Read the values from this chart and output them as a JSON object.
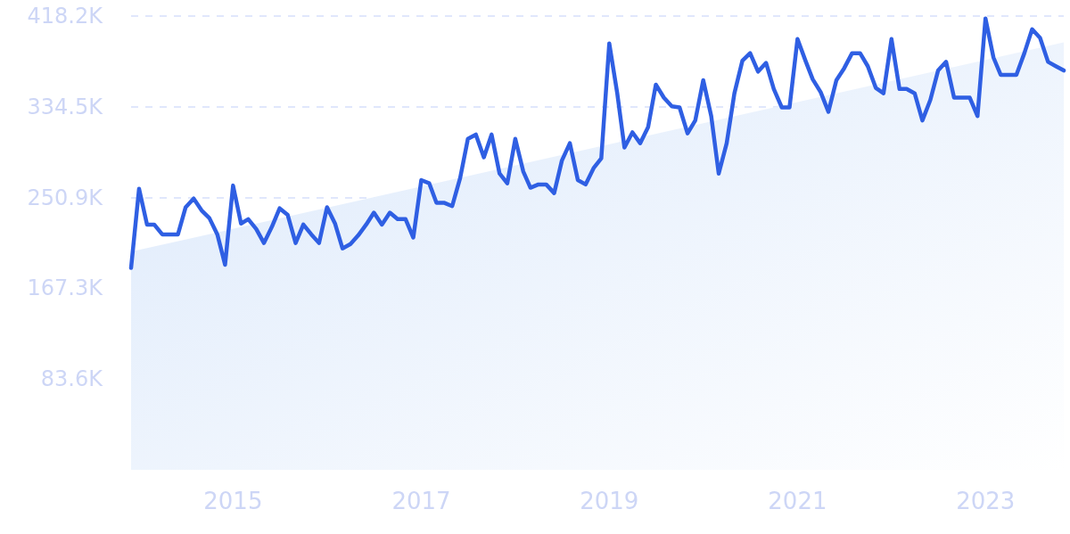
{
  "chart_data": {
    "type": "line",
    "xlim": [
      "2013-12",
      "2023-11"
    ],
    "xticks": [
      "2015",
      "2017",
      "2019",
      "2021",
      "2023"
    ],
    "ylim": [
      0,
      418200
    ],
    "yticks": [
      {
        "value": 83640,
        "label": "83.6K"
      },
      {
        "value": 167280,
        "label": "167.3K"
      },
      {
        "value": 250920,
        "label": "250.9K"
      },
      {
        "value": 334500,
        "label": "334.5K"
      },
      {
        "value": 418200,
        "label": "418.2K"
      }
    ],
    "grid": "y",
    "marker": "none",
    "line_style": "solid",
    "series": [
      {
        "type": "area",
        "color": "#dce9fb",
        "x": [
          "2013-12",
          "2023-11"
        ],
        "values": [
          201000,
          394000
        ]
      },
      {
        "color": "#2f5fe3",
        "x": [
          "2013-12",
          "2014-01",
          "2014-02",
          "2014-03",
          "2014-04",
          "2014-05",
          "2014-06",
          "2014-07",
          "2014-08",
          "2014-09",
          "2014-10",
          "2014-11",
          "2014-12",
          "2015-01",
          "2015-02",
          "2015-03",
          "2015-04",
          "2015-05",
          "2015-06",
          "2015-07",
          "2015-08",
          "2015-09",
          "2015-10",
          "2015-11",
          "2015-12",
          "2016-01",
          "2016-02",
          "2016-03",
          "2016-04",
          "2016-05",
          "2016-06",
          "2016-07",
          "2016-08",
          "2016-09",
          "2016-10",
          "2016-11",
          "2016-12",
          "2017-01",
          "2017-02",
          "2017-03",
          "2017-04",
          "2017-05",
          "2017-06",
          "2017-07",
          "2017-08",
          "2017-09",
          "2017-10",
          "2017-11",
          "2017-12",
          "2018-01",
          "2018-02",
          "2018-03",
          "2018-04",
          "2018-05",
          "2018-06",
          "2018-07",
          "2018-08",
          "2018-09",
          "2018-10",
          "2018-11",
          "2018-12",
          "2019-01",
          "2019-02",
          "2019-03",
          "2019-04",
          "2019-05",
          "2019-06",
          "2019-07",
          "2019-08",
          "2019-09",
          "2019-10",
          "2019-11",
          "2019-12",
          "2020-01",
          "2020-02",
          "2020-03",
          "2020-04",
          "2020-05",
          "2020-06",
          "2020-07",
          "2020-08",
          "2020-09",
          "2020-10",
          "2020-11",
          "2020-12",
          "2021-01",
          "2021-02",
          "2021-03",
          "2021-04",
          "2021-05",
          "2021-06",
          "2021-07",
          "2021-08",
          "2021-09",
          "2021-10",
          "2021-11",
          "2021-12",
          "2022-01",
          "2022-02",
          "2022-03",
          "2022-04",
          "2022-05",
          "2022-06",
          "2022-07",
          "2022-08",
          "2022-09",
          "2022-10",
          "2022-11",
          "2022-12",
          "2023-01",
          "2023-02",
          "2023-03",
          "2023-04",
          "2023-05",
          "2023-06",
          "2023-07",
          "2023-08",
          "2023-09",
          "2023-10",
          "2023-11"
        ],
        "values": [
          186000,
          259000,
          226000,
          226000,
          217000,
          217000,
          217000,
          242000,
          250000,
          239000,
          232000,
          217000,
          189000,
          262000,
          227000,
          231000,
          222000,
          209000,
          224000,
          241000,
          235000,
          209000,
          226000,
          217000,
          209000,
          242000,
          227000,
          204000,
          208000,
          216000,
          226000,
          237000,
          226000,
          237000,
          231000,
          231000,
          214000,
          267000,
          264000,
          246000,
          246000,
          243000,
          269000,
          305000,
          309000,
          288000,
          309000,
          273000,
          264000,
          305000,
          275000,
          260000,
          263000,
          263000,
          255000,
          285000,
          301000,
          267000,
          263000,
          278000,
          287000,
          393000,
          347000,
          297000,
          311000,
          301000,
          316000,
          355000,
          343000,
          335000,
          334000,
          310000,
          322000,
          359000,
          326000,
          273000,
          301000,
          347000,
          377000,
          384000,
          367000,
          375000,
          351000,
          334000,
          334000,
          397000,
          377000,
          360000,
          348000,
          330000,
          359000,
          370000,
          384000,
          384000,
          372000,
          352000,
          347000,
          397000,
          351000,
          351000,
          347000,
          322000,
          341000,
          368000,
          376000,
          343000,
          343000,
          343000,
          326000,
          416000,
          380000,
          364000,
          364000,
          364000,
          384000,
          406000,
          398000,
          376000,
          372000,
          368000
        ]
      }
    ]
  }
}
